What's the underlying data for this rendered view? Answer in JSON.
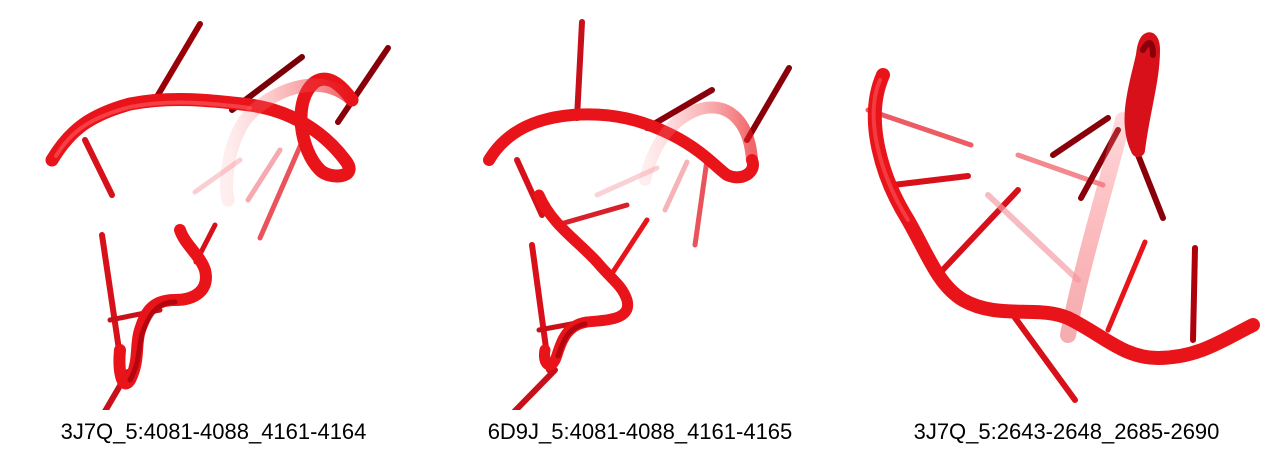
{
  "panels": [
    {
      "id": "3J7Q_5:4081-4088_4161-4164",
      "caption": "3J7Q_5:4081-4088_4161-4164"
    },
    {
      "id": "6D9J_5:4081-4088_4161-4165",
      "caption": "6D9J_5:4081-4088_4161-4165"
    },
    {
      "id": "3J7Q_5:2643-2648_2685-2690",
      "caption": "3J7Q_5:2643-2648_2685-2690"
    }
  ],
  "colors": {
    "backbone": "#e8141a",
    "backbone_highlight": "#ff6a6e",
    "backbone_shadow": "#9a0008",
    "base": "#d8101a",
    "base_dark": "#8a000a",
    "background": "#ffffff"
  }
}
